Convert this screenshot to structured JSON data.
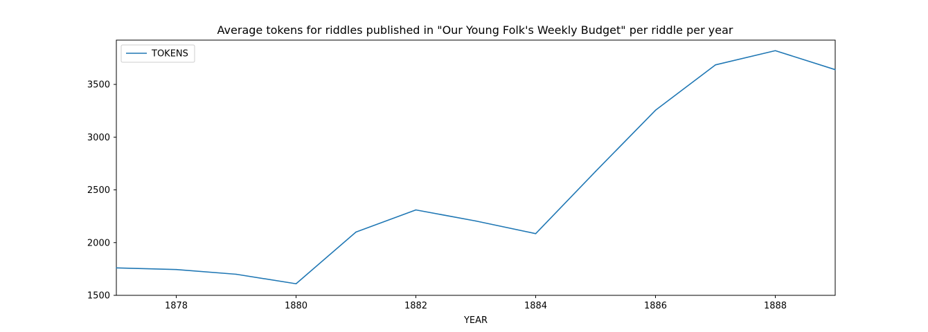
{
  "chart_data": {
    "type": "line",
    "title": "Average tokens for riddles published in \"Our Young Folk's Weekly Budget\" per riddle per year",
    "xlabel": "YEAR",
    "ylabel": "",
    "x": [
      1877,
      1878,
      1879,
      1880,
      1881,
      1882,
      1883,
      1884,
      1885,
      1886,
      1887,
      1888,
      1889
    ],
    "series": [
      {
        "name": "TOKENS",
        "color": "#1f77b4",
        "values": [
          1760,
          1745,
          1700,
          1610,
          2100,
          2310,
          2205,
          2085,
          2675,
          3255,
          3685,
          3820,
          3640
        ]
      }
    ],
    "xlim": [
      1877,
      1889
    ],
    "ylim": [
      1500,
      3920
    ],
    "xticks": [
      "1878",
      "1880",
      "1882",
      "1884",
      "1886",
      "1888"
    ],
    "yticks": [
      "1500",
      "2000",
      "2500",
      "3000",
      "3500"
    ],
    "grid": false,
    "legend_position": "upper-left"
  }
}
